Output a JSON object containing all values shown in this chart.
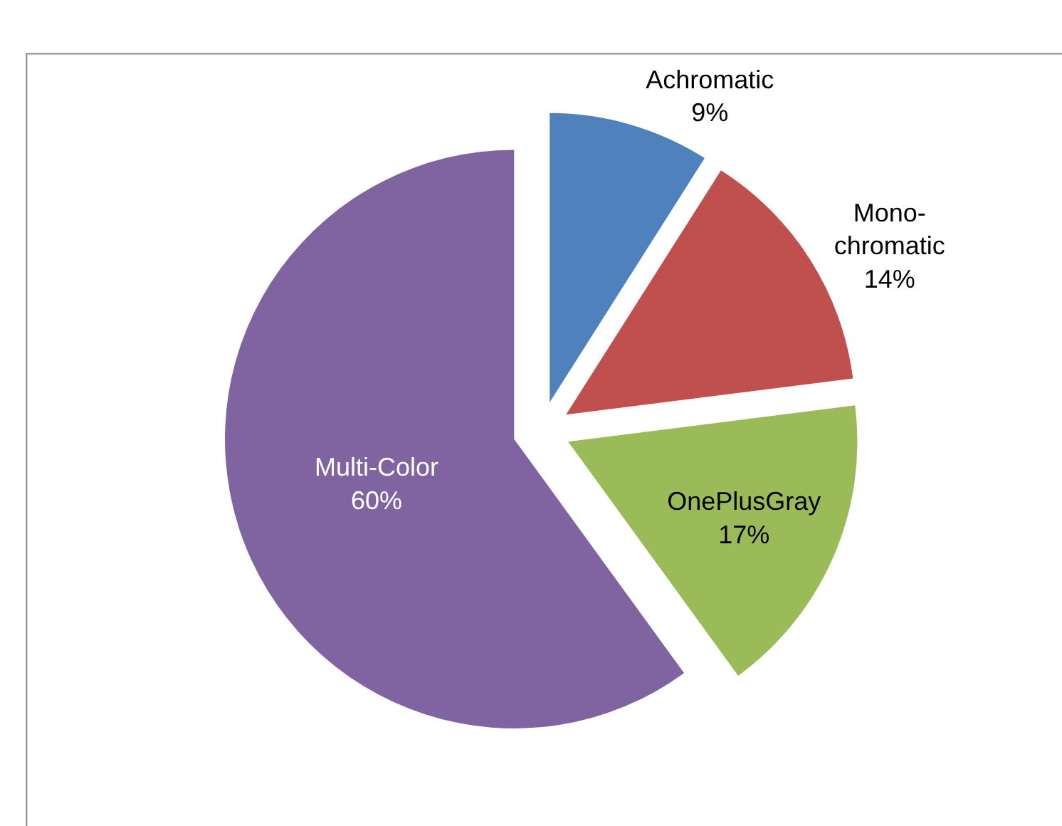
{
  "chart_data": {
    "type": "pie",
    "categories": [
      "Achromatic",
      "Mono-\nchromatic",
      "OnePlusGray",
      "Multi-Color"
    ],
    "values": [
      9,
      14,
      17,
      60
    ],
    "colors": [
      "#4f81bd",
      "#c0504d",
      "#9bbb59",
      "#8064a2"
    ],
    "value_labels": [
      "9%",
      "14%",
      "17%",
      "60%"
    ],
    "legend": false
  }
}
